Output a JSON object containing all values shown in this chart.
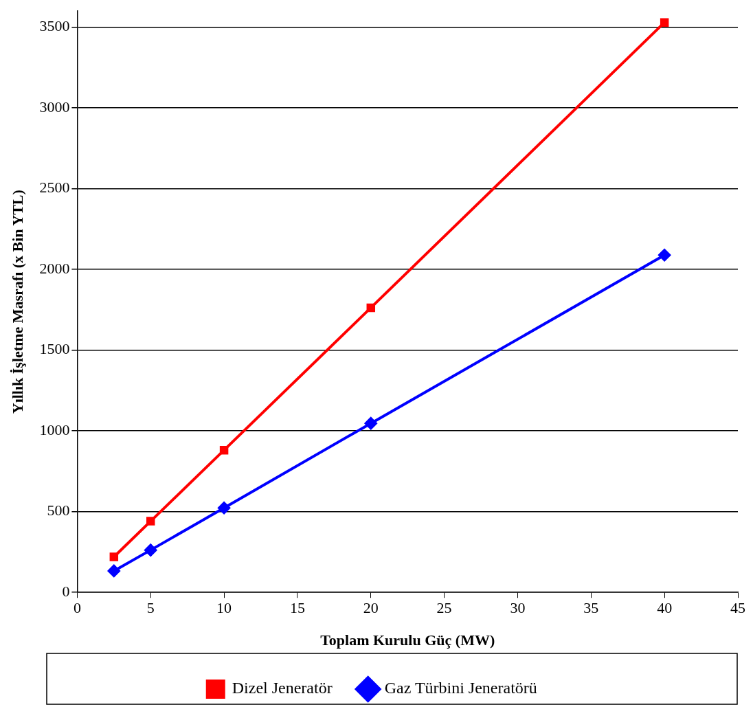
{
  "chart_data": {
    "type": "line",
    "xlabel": "Toplam Kurulu Güç (MW)",
    "ylabel": "Yıllık İşletme Masrafı (x Bin YTL)",
    "xlim": [
      0,
      45
    ],
    "xticks": [
      0,
      5,
      10,
      15,
      20,
      25,
      30,
      35,
      40,
      45
    ],
    "ylim": [
      0,
      3600
    ],
    "yticks": [
      0,
      500,
      1000,
      1500,
      2000,
      2500,
      3000,
      3500
    ],
    "grid": "y",
    "legend": "bottom",
    "series": [
      {
        "name": "Dizel Jeneratör",
        "color": "#ff0000",
        "marker": "square",
        "x": [
          2.5,
          5,
          10,
          20,
          40
        ],
        "values": [
          220,
          441,
          881,
          1763,
          3530
        ]
      },
      {
        "name": "Gaz Türbini Jeneratörü",
        "color": "#0000ff",
        "marker": "diamond",
        "x": [
          2.5,
          5,
          10,
          20,
          40
        ],
        "values": [
          133,
          262,
          523,
          1047,
          2089
        ]
      }
    ]
  }
}
